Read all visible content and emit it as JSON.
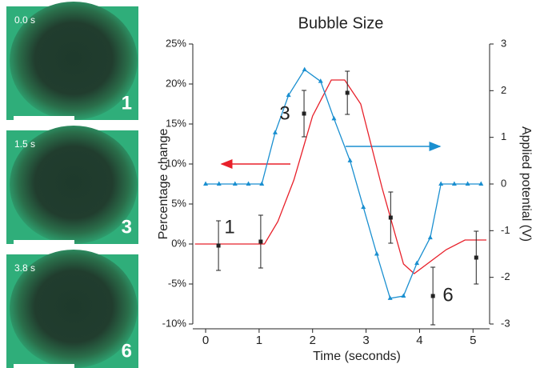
{
  "panels": [
    {
      "time": "0.0 s",
      "label": "1"
    },
    {
      "time": "1.5 s",
      "label": "3"
    },
    {
      "time": "3.8 s",
      "label": "6"
    }
  ],
  "chart_data": {
    "type": "line",
    "title": "Bubble Size",
    "x_label": "Time (seconds)",
    "y_label": "Percentage change",
    "y2_label": "Applied potential (V)",
    "xlim": [
      -0.24,
      5.31
    ],
    "xticks": [
      0,
      1,
      2,
      3,
      4,
      5
    ],
    "ylim": [
      -10,
      25
    ],
    "yticks": [
      {
        "value": -10,
        "label": "-10%"
      },
      {
        "value": -5,
        "label": "-5%"
      },
      {
        "value": 0,
        "label": "0%"
      },
      {
        "value": 5,
        "label": "5%"
      },
      {
        "value": 10,
        "label": "10%"
      },
      {
        "value": 15,
        "label": "15%"
      },
      {
        "value": 20,
        "label": "20%"
      },
      {
        "value": 25,
        "label": "25%"
      }
    ],
    "y2lim": [
      -3,
      3
    ],
    "y2ticks": [
      -3,
      -2,
      -1,
      0,
      1,
      2,
      3
    ],
    "grid": false,
    "series": [
      {
        "color": "#e8202a",
        "x": [
          -0.2,
          1.1,
          1.35,
          1.65,
          2.0,
          2.35,
          2.6,
          2.9,
          3.3,
          3.7,
          3.9,
          4.5,
          4.85,
          5.25
        ],
        "values": [
          0,
          0,
          2.8,
          8,
          16,
          20.5,
          20.5,
          17.5,
          7,
          -2.5,
          -3.7,
          -0.7,
          0.5,
          0.5
        ]
      },
      {
        "color": "#1a8fd0",
        "axis": "y2",
        "marker": "triangle",
        "x": [
          0,
          0.25,
          0.55,
          0.8,
          1.05,
          1.3,
          1.55,
          1.85,
          2.15,
          2.4,
          2.7,
          2.95,
          3.2,
          3.45,
          3.7,
          3.95,
          4.2,
          4.4,
          4.65,
          4.9,
          5.15
        ],
        "values": [
          0,
          0,
          0,
          0,
          0,
          1.1,
          1.9,
          2.45,
          2.2,
          1.4,
          0.5,
          -0.5,
          -1.5,
          -2.45,
          -2.4,
          -1.7,
          -1.15,
          0,
          0,
          0,
          0
        ]
      },
      {
        "color": "#222222",
        "marker": "square",
        "x": [
          0.24,
          1.03,
          1.84,
          2.65,
          3.46,
          4.25,
          5.06
        ],
        "values": [
          -0.2,
          0.3,
          16.3,
          18.9,
          3.3,
          -6.5,
          -1.7
        ],
        "errors": [
          3.1,
          3.3,
          2.9,
          2.7,
          3.2,
          3.6,
          3.3
        ]
      }
    ],
    "annotations": [
      "1",
      "3",
      "6"
    ]
  }
}
